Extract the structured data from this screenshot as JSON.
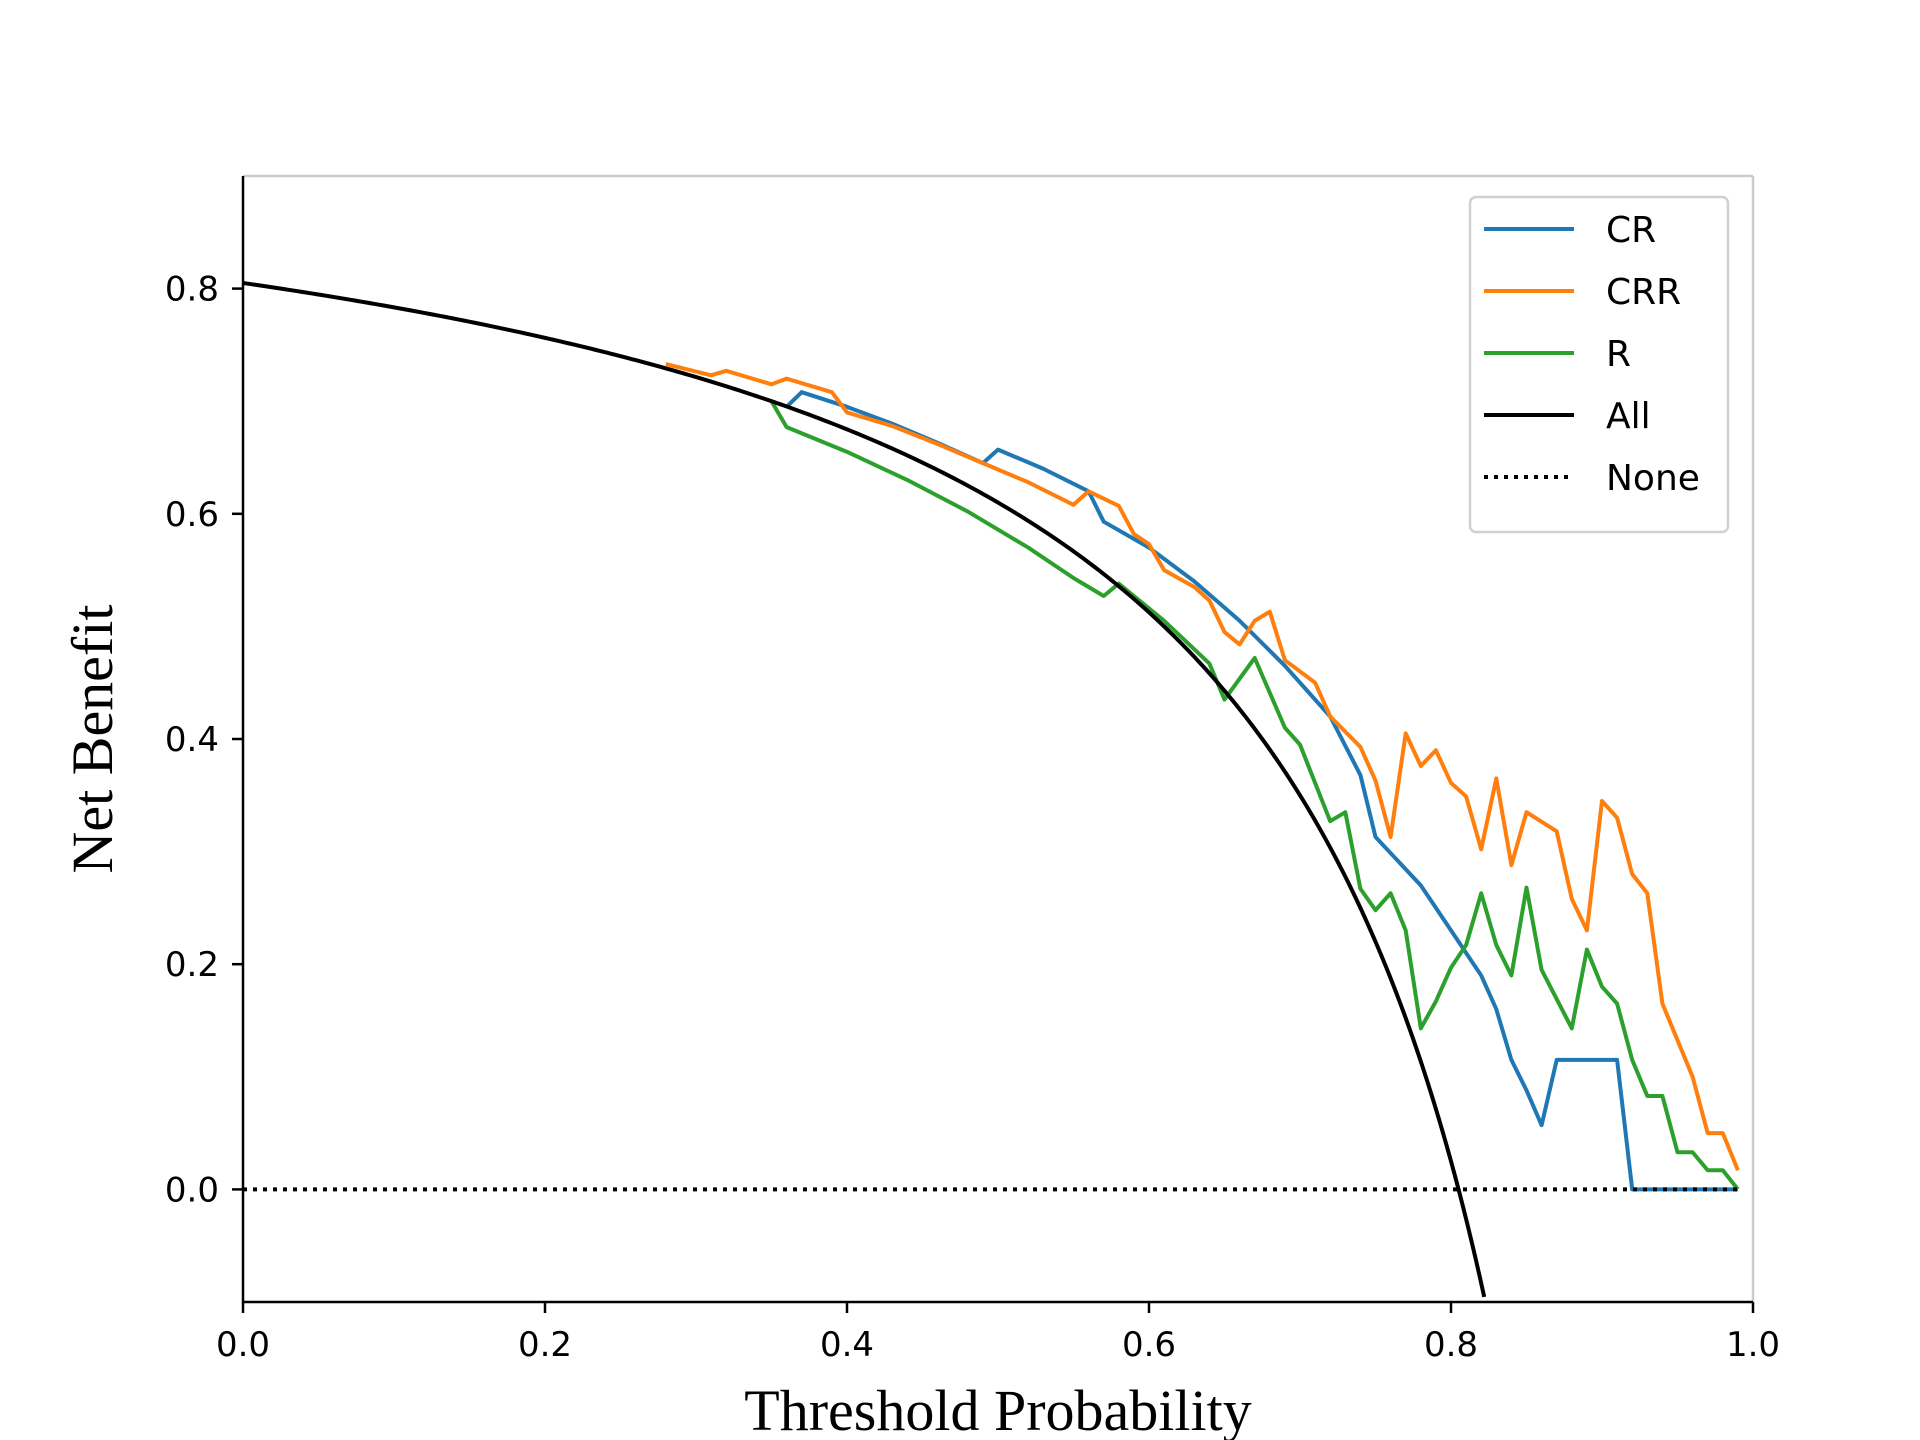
{
  "chart_data": {
    "type": "line",
    "xlabel": "Threshold Probability",
    "ylabel": "Net Benefit",
    "xlim": [
      0.0,
      1.0
    ],
    "ylim": [
      -0.1,
      0.9
    ],
    "xticks": [
      "0.0",
      "0.2",
      "0.4",
      "0.6",
      "0.8",
      "1.0"
    ],
    "xtick_values": [
      0.0,
      0.2,
      0.4,
      0.6,
      0.8,
      1.0
    ],
    "yticks": [
      "0.0",
      "0.2",
      "0.4",
      "0.6",
      "0.8"
    ],
    "ytick_values": [
      0.0,
      0.2,
      0.4,
      0.6,
      0.8
    ],
    "grid": false,
    "legend_position": "top-right",
    "series": [
      {
        "name": "CR",
        "color": "#1f77b4",
        "style": "solid",
        "points": [
          [
            0.36,
            0.695
          ],
          [
            0.37,
            0.708
          ],
          [
            0.4,
            0.695
          ],
          [
            0.43,
            0.68
          ],
          [
            0.46,
            0.663
          ],
          [
            0.49,
            0.645
          ],
          [
            0.5,
            0.657
          ],
          [
            0.53,
            0.64
          ],
          [
            0.56,
            0.62
          ],
          [
            0.57,
            0.593
          ],
          [
            0.6,
            0.57
          ],
          [
            0.63,
            0.54
          ],
          [
            0.66,
            0.505
          ],
          [
            0.69,
            0.465
          ],
          [
            0.72,
            0.42
          ],
          [
            0.74,
            0.368
          ],
          [
            0.75,
            0.313
          ],
          [
            0.78,
            0.27
          ],
          [
            0.8,
            0.23
          ],
          [
            0.82,
            0.19
          ],
          [
            0.83,
            0.16
          ],
          [
            0.84,
            0.115
          ],
          [
            0.85,
            0.088
          ],
          [
            0.86,
            0.057
          ],
          [
            0.87,
            0.115
          ],
          [
            0.91,
            0.115
          ],
          [
            0.92,
            0.0
          ],
          [
            0.99,
            0.0
          ]
        ]
      },
      {
        "name": "CRR",
        "color": "#ff7f0e",
        "style": "solid",
        "points": [
          [
            0.28,
            0.733
          ],
          [
            0.31,
            0.723
          ],
          [
            0.32,
            0.727
          ],
          [
            0.35,
            0.715
          ],
          [
            0.36,
            0.72
          ],
          [
            0.39,
            0.708
          ],
          [
            0.4,
            0.69
          ],
          [
            0.43,
            0.678
          ],
          [
            0.46,
            0.662
          ],
          [
            0.49,
            0.645
          ],
          [
            0.52,
            0.628
          ],
          [
            0.55,
            0.608
          ],
          [
            0.56,
            0.62
          ],
          [
            0.58,
            0.607
          ],
          [
            0.59,
            0.582
          ],
          [
            0.6,
            0.573
          ],
          [
            0.61,
            0.55
          ],
          [
            0.63,
            0.535
          ],
          [
            0.64,
            0.523
          ],
          [
            0.65,
            0.495
          ],
          [
            0.66,
            0.484
          ],
          [
            0.67,
            0.505
          ],
          [
            0.68,
            0.513
          ],
          [
            0.69,
            0.47
          ],
          [
            0.71,
            0.45
          ],
          [
            0.72,
            0.42
          ],
          [
            0.74,
            0.393
          ],
          [
            0.75,
            0.363
          ],
          [
            0.76,
            0.313
          ],
          [
            0.77,
            0.405
          ],
          [
            0.78,
            0.376
          ],
          [
            0.79,
            0.39
          ],
          [
            0.8,
            0.361
          ],
          [
            0.81,
            0.349
          ],
          [
            0.82,
            0.302
          ],
          [
            0.83,
            0.365
          ],
          [
            0.84,
            0.288
          ],
          [
            0.85,
            0.335
          ],
          [
            0.87,
            0.318
          ],
          [
            0.88,
            0.258
          ],
          [
            0.89,
            0.23
          ],
          [
            0.9,
            0.345
          ],
          [
            0.91,
            0.33
          ],
          [
            0.92,
            0.28
          ],
          [
            0.93,
            0.263
          ],
          [
            0.94,
            0.165
          ],
          [
            0.96,
            0.1
          ],
          [
            0.97,
            0.05
          ],
          [
            0.98,
            0.05
          ],
          [
            0.99,
            0.017
          ]
        ]
      },
      {
        "name": "R",
        "color": "#2ca02c",
        "style": "solid",
        "points": [
          [
            0.35,
            0.7
          ],
          [
            0.36,
            0.677
          ],
          [
            0.4,
            0.655
          ],
          [
            0.44,
            0.63
          ],
          [
            0.48,
            0.602
          ],
          [
            0.52,
            0.57
          ],
          [
            0.55,
            0.543
          ],
          [
            0.57,
            0.527
          ],
          [
            0.58,
            0.538
          ],
          [
            0.61,
            0.505
          ],
          [
            0.64,
            0.467
          ],
          [
            0.65,
            0.435
          ],
          [
            0.67,
            0.472
          ],
          [
            0.69,
            0.41
          ],
          [
            0.7,
            0.395
          ],
          [
            0.72,
            0.327
          ],
          [
            0.73,
            0.335
          ],
          [
            0.74,
            0.267
          ],
          [
            0.75,
            0.248
          ],
          [
            0.76,
            0.263
          ],
          [
            0.77,
            0.23
          ],
          [
            0.78,
            0.143
          ],
          [
            0.79,
            0.167
          ],
          [
            0.8,
            0.197
          ],
          [
            0.81,
            0.217
          ],
          [
            0.82,
            0.263
          ],
          [
            0.83,
            0.217
          ],
          [
            0.84,
            0.19
          ],
          [
            0.85,
            0.268
          ],
          [
            0.86,
            0.195
          ],
          [
            0.88,
            0.143
          ],
          [
            0.89,
            0.213
          ],
          [
            0.9,
            0.18
          ],
          [
            0.91,
            0.165
          ],
          [
            0.92,
            0.115
          ],
          [
            0.93,
            0.083
          ],
          [
            0.94,
            0.083
          ],
          [
            0.95,
            0.033
          ],
          [
            0.96,
            0.033
          ],
          [
            0.97,
            0.017
          ],
          [
            0.98,
            0.017
          ],
          [
            0.99,
            0.0
          ]
        ]
      },
      {
        "name": "All",
        "color": "#000000",
        "style": "solid",
        "prevalence": 0.805,
        "xrange": [
          0.0,
          0.822
        ]
      },
      {
        "name": "None",
        "color": "#000000",
        "style": "dotted",
        "points": [
          [
            0.0,
            0.0
          ],
          [
            0.99,
            0.0
          ]
        ]
      }
    ]
  }
}
